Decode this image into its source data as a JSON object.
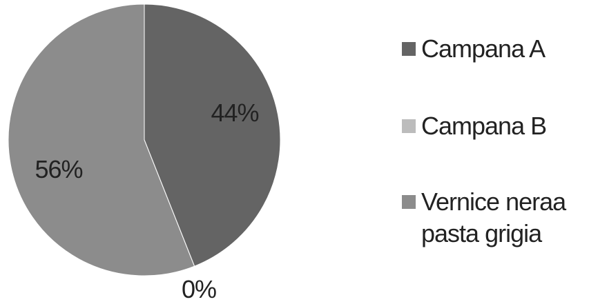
{
  "chart_data": {
    "type": "pie",
    "title": "",
    "legend_position": "right",
    "series": [
      {
        "name": "",
        "slices": [
          {
            "label": "Campana A",
            "value": 44,
            "display": "44%",
            "color": "#646464"
          },
          {
            "label": "Campana B",
            "value": 0,
            "display": "0%",
            "color": "#bcbcbc"
          },
          {
            "label": "Vernice neraa pasta grigia",
            "value": 56,
            "display": "56%",
            "color": "#8c8c8c"
          }
        ]
      }
    ],
    "legend": [
      "Campana A",
      "Campana B",
      "Vernice neraa pasta grigia"
    ]
  }
}
